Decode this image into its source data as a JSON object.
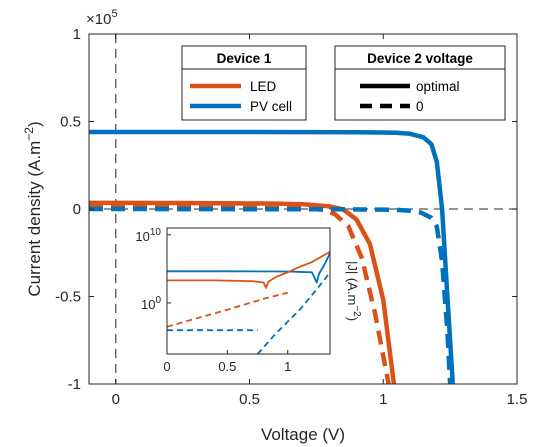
{
  "chart_data": {
    "type": "line",
    "xlabel": "Voltage (V)",
    "ylabel": "Current density (A.m",
    "ylabel_sup": "−2",
    "ylabel_tail": ")",
    "exponent_prefix": "×10",
    "exponent_power": "5",
    "xlim": [
      -0.1,
      1.5
    ],
    "ylim": [
      -1,
      1
    ],
    "x_ticks": [
      "0",
      "0.5",
      "1",
      "1.5"
    ],
    "y_ticks": [
      "1",
      "0.5",
      "0",
      "-0.5",
      "-1"
    ],
    "grid": false,
    "colors": {
      "LED": "#D95319",
      "PV cell": "#0072BD",
      "reference": "#555555"
    },
    "legend_device1": {
      "title": "Device 1",
      "entries": [
        "LED",
        "PV cell"
      ]
    },
    "legend_device2": {
      "title": "Device 2 voltage",
      "entries": [
        "optimal",
        "0"
      ]
    },
    "series": [
      {
        "name": "LED",
        "device2": "optimal",
        "style": "solid",
        "x": [
          -0.1,
          0,
          0.2,
          0.4,
          0.6,
          0.7,
          0.8,
          0.85,
          0.9,
          0.95,
          1.0,
          1.04
        ],
        "y": [
          0.035,
          0.035,
          0.034,
          0.033,
          0.031,
          0.027,
          0.015,
          -0.002,
          -0.06,
          -0.2,
          -0.52,
          -1.0
        ]
      },
      {
        "name": "LED",
        "device2": "0",
        "style": "dashed",
        "x": [
          -0.1,
          0,
          0.2,
          0.4,
          0.6,
          0.7,
          0.78,
          0.82,
          0.87,
          0.92,
          0.97,
          1.02
        ],
        "y": [
          0.012,
          0.012,
          0.011,
          0.01,
          0.009,
          0.005,
          -0.005,
          -0.03,
          -0.1,
          -0.28,
          -0.6,
          -1.0
        ]
      },
      {
        "name": "PV cell",
        "device2": "optimal",
        "style": "solid",
        "x": [
          -0.1,
          0,
          0.5,
          0.9,
          1.05,
          1.1,
          1.15,
          1.18,
          1.2,
          1.22,
          1.24,
          1.26
        ],
        "y": [
          0.44,
          0.44,
          0.44,
          0.439,
          0.436,
          0.43,
          0.41,
          0.37,
          0.27,
          0.0,
          -0.5,
          -1.0
        ]
      },
      {
        "name": "PV cell",
        "device2": "0",
        "style": "dashed",
        "x": [
          -0.1,
          0,
          0.5,
          0.85,
          0.95,
          1.05,
          1.1,
          1.14,
          1.18,
          1.2,
          1.22,
          1.24,
          1.25
        ],
        "y": [
          0.0,
          0.0,
          -0.001,
          -0.002,
          -0.003,
          -0.005,
          -0.01,
          -0.02,
          -0.05,
          -0.1,
          -0.3,
          -0.7,
          -1.0
        ]
      }
    ],
    "zero_lines": {
      "horizontal_y": 0,
      "vertical_x": 0
    },
    "inset": {
      "ylabel": "|J| (A.m",
      "ylabel_sup": "−2",
      "ylabel_tail": ")",
      "xlim": [
        0,
        1.35
      ],
      "x_ticks": [
        "0",
        "0.5",
        "1"
      ],
      "y_scale": "log",
      "y_tick_base": "10",
      "y_tick_powers": [
        "10",
        "0"
      ],
      "y_log_range": [
        -7.5,
        11
      ],
      "series": [
        {
          "name": "PV cell",
          "device2": "optimal",
          "style": "solid",
          "x": [
            0,
            0.5,
            1.0,
            1.2,
            1.24,
            1.26,
            1.3,
            1.35
          ],
          "logy": [
            4.64,
            4.64,
            4.62,
            4.5,
            3.0,
            4.3,
            5.5,
            7.3
          ]
        },
        {
          "name": "LED",
          "device2": "optimal",
          "style": "solid",
          "x": [
            0,
            0.4,
            0.7,
            0.8,
            0.82,
            0.84,
            0.9,
            1.0,
            1.1,
            1.2,
            1.35
          ],
          "logy": [
            3.3,
            3.3,
            3.2,
            3.0,
            2.2,
            3.1,
            3.8,
            4.5,
            5.3,
            6.0,
            7.5
          ]
        },
        {
          "name": "LED",
          "device2": "0",
          "style": "dashed",
          "x": [
            0,
            0.2,
            0.5,
            0.8,
            1.0
          ],
          "logy": [
            -3.5,
            -2.5,
            -1.0,
            0.6,
            1.5
          ]
        },
        {
          "name": "PV cell",
          "device2": "0",
          "style": "dashed",
          "x": [
            0,
            0.3,
            0.6,
            0.75
          ],
          "logy": [
            -4,
            -4,
            -4,
            -4
          ]
        },
        {
          "name": "PV cell",
          "device2": "0",
          "style": "dashed",
          "x": [
            0.75,
            0.9,
            1.1,
            1.25,
            1.35
          ],
          "logy": [
            -7.5,
            -4.5,
            -1.0,
            2.2,
            4.5
          ]
        }
      ]
    }
  }
}
